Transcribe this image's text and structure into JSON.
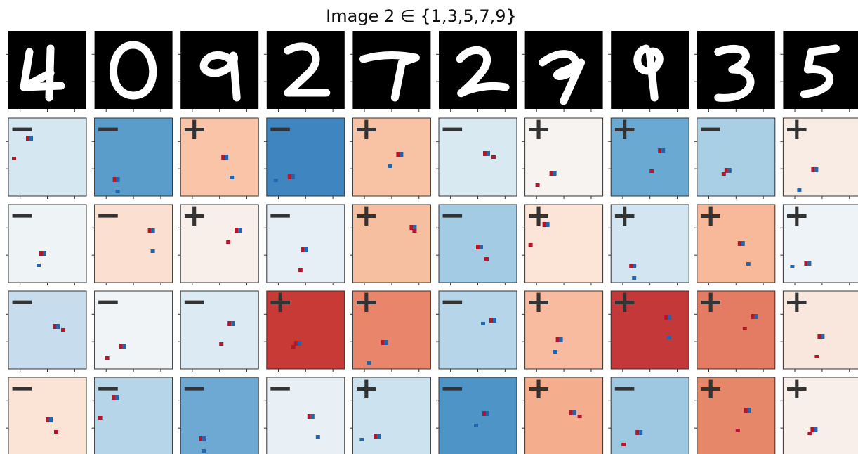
{
  "title": "Image 2 ∈ {1,3,5,7,9}",
  "rows": [
    {
      "signs": [
        "−",
        "−",
        "+",
        "−",
        "+",
        "−",
        "+",
        "+",
        "−",
        "+"
      ],
      "colors": [
        "#d5e7f1",
        "#5a9dcb",
        "#f9c4a8",
        "#3f86c0",
        "#f8c2a5",
        "#d9e9f2",
        "#f7f3f1",
        "#6aa9d2",
        "#a9cfe5",
        "#f9ece5"
      ]
    },
    {
      "signs": [
        "−",
        "−",
        "+",
        "−",
        "+",
        "−",
        "+",
        "+",
        "+",
        "+"
      ],
      "colors": [
        "#eef3f6",
        "#fbe0d2",
        "#f8eeea",
        "#e6eff5",
        "#f6bfa0",
        "#a3cbe3",
        "#fce4d6",
        "#d3e5f0",
        "#f7b99a",
        "#eef3f7"
      ]
    },
    {
      "signs": [
        "−",
        "−",
        "−",
        "+",
        "+",
        "−",
        "+",
        "+",
        "+",
        "+"
      ],
      "colors": [
        "#c7dded",
        "#f1f4f6",
        "#dcebf3",
        "#c73a36",
        "#e9856a",
        "#b6d5e8",
        "#f8bba0",
        "#c4383a",
        "#e37c62",
        "#f9e6dc"
      ]
    },
    {
      "signs": [
        "−",
        "−",
        "−",
        "−",
        "+",
        "−",
        "+",
        "−",
        "+",
        "+"
      ],
      "colors": [
        "#fbe3d6",
        "#b6d5e8",
        "#6ea9d3",
        "#e8f0f6",
        "#cde2ef",
        "#4e94c6",
        "#f4ad8d",
        "#9ec8e2",
        "#e58768",
        "#f8efea"
      ]
    }
  ]
}
